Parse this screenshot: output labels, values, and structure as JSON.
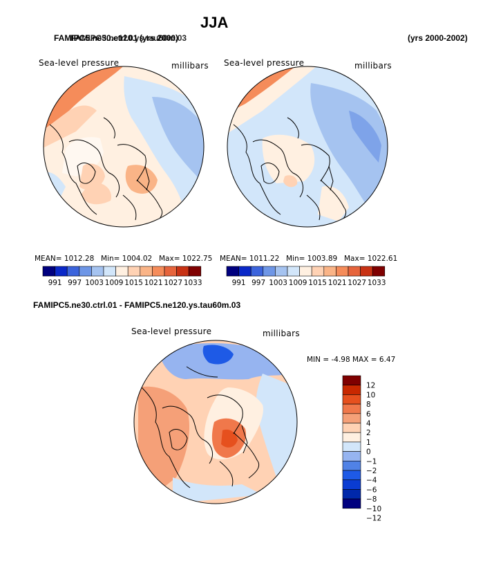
{
  "title": "JJA",
  "top_left_case_a": "FAMIPC5.ne30.ctrl.01",
  "top_left_case_b": "FAMIPC5.ne120.ys.tau60m.03",
  "top_left_years": "(yrs 2000)",
  "top_right_years": "(yrs 2000-2002)",
  "bottom_header": "FAMIPC5.ne30.ctrl.01 - FAMIPC5.ne120.ys.tau60m.03",
  "colors": {
    "abs": [
      "#00007f",
      "#0a28c8",
      "#3c64dc",
      "#6e96e6",
      "#a5c3f0",
      "#d2e6fa",
      "#fff0e1",
      "#ffd2b4",
      "#fab487",
      "#f58c5a",
      "#e6643c",
      "#c83214",
      "#7f0000"
    ],
    "diff": [
      "#00007f",
      "#0028aa",
      "#0a3cd2",
      "#1e5ae6",
      "#5082e6",
      "#96b4f0",
      "#d2e6fa",
      "#fff0e1",
      "#ffd2b4",
      "#f5a078",
      "#f0784b",
      "#e6501e",
      "#c82800",
      "#7f0000"
    ]
  },
  "chart_data": [
    {
      "type": "heatmap",
      "projection": "north-polar-stereographic",
      "title": "Sea-level pressure",
      "units": "millibars",
      "mean_label": "MEAN=  1012.28",
      "min_label": "Min=  1004.02",
      "max_label": "Max=  1022.75",
      "mean": 1012.28,
      "min": 1004.02,
      "max": 1022.75,
      "colorbar_ticks": [
        "991",
        "997",
        "1003",
        "1009",
        "1015",
        "1021",
        "1027",
        "1033"
      ],
      "colorbar_levels": [
        991,
        994,
        997,
        1000,
        1003,
        1006,
        1009,
        1012,
        1015,
        1018,
        1021,
        1024,
        1027,
        1030,
        1033
      ]
    },
    {
      "type": "heatmap",
      "projection": "north-polar-stereographic",
      "title": "Sea-level pressure",
      "units": "millibars",
      "mean_label": "MEAN=  1011.22",
      "min_label": "Min=  1003.89",
      "max_label": "Max=  1022.61",
      "mean": 1011.22,
      "min": 1003.89,
      "max": 1022.61,
      "colorbar_ticks": [
        "991",
        "997",
        "1003",
        "1009",
        "1015",
        "1021",
        "1027",
        "1033"
      ],
      "colorbar_levels": [
        991,
        994,
        997,
        1000,
        1003,
        1006,
        1009,
        1012,
        1015,
        1018,
        1021,
        1024,
        1027,
        1030,
        1033
      ]
    },
    {
      "type": "heatmap",
      "projection": "north-polar-stereographic",
      "title": "Sea-level pressure",
      "units": "millibars",
      "min_max_label": "MIN =   -4.98 MAX =    6.47",
      "min": -4.98,
      "max": 6.47,
      "colorbar_ticks": [
        "12",
        "10",
        "8",
        "6",
        "4",
        "2",
        "1",
        "0",
        "-1",
        "-2",
        "-4",
        "-6",
        "-8",
        "-10",
        "-12"
      ]
    }
  ]
}
